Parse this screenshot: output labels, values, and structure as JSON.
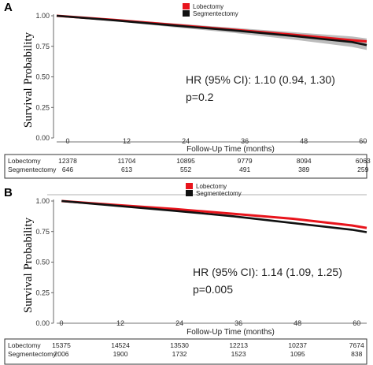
{
  "colors": {
    "lobectomy": "#e8141c",
    "segmentectomy": "#111111",
    "ci_band": "#b5b5b5",
    "axis": "#444444"
  },
  "chart_data": [
    {
      "type": "line",
      "panel_label": "A",
      "title": "",
      "xlabel": "Follow-Up Time (months)",
      "ylabel": "Survival Probability",
      "xlim": [
        0,
        63
      ],
      "ylim": [
        0,
        1.0
      ],
      "x_ticks": [
        0,
        12,
        24,
        36,
        48,
        60
      ],
      "y_ticks": [
        "0.00",
        "0.25",
        "0.50",
        "0.75",
        "1.00"
      ],
      "legend": {
        "placement": "top-center",
        "entries": [
          "Lobectomy",
          "Segmentectomy"
        ]
      },
      "annotation": [
        "HR (95% CI): 1.10 (0.94, 1.30)",
        "p=0.2"
      ],
      "series": [
        {
          "name": "Lobectomy",
          "x": [
            0,
            12,
            24,
            36,
            48,
            60,
            63
          ],
          "y": [
            1.0,
            0.965,
            0.925,
            0.885,
            0.845,
            0.8,
            0.79
          ]
        },
        {
          "name": "Segmentectomy",
          "x": [
            0,
            12,
            24,
            36,
            48,
            60,
            63
          ],
          "y": [
            1.0,
            0.962,
            0.92,
            0.88,
            0.835,
            0.785,
            0.76
          ]
        }
      ],
      "ci_band": {
        "x": [
          0,
          12,
          24,
          36,
          48,
          60,
          63
        ],
        "lower": [
          1.0,
          0.955,
          0.905,
          0.86,
          0.805,
          0.745,
          0.72
        ],
        "upper": [
          1.0,
          0.972,
          0.937,
          0.902,
          0.866,
          0.83,
          0.815
        ]
      },
      "risk_table": {
        "rows": [
          {
            "label": "Lobectomy",
            "values": [
              "12378",
              "11704",
              "10895",
              "9779",
              "8094",
              "6063"
            ]
          },
          {
            "label": "Segmentectomy",
            "values": [
              "646",
              "613",
              "552",
              "491",
              "389",
              "259"
            ]
          }
        ]
      }
    },
    {
      "type": "line",
      "panel_label": "B",
      "title": "",
      "xlabel": "Follow-Up Time (months)",
      "ylabel": "Survival Probability",
      "xlim": [
        0,
        63
      ],
      "ylim": [
        0,
        1.0
      ],
      "x_ticks": [
        0,
        12,
        24,
        36,
        48,
        60
      ],
      "y_ticks": [
        "0.00",
        "0.25",
        "0.50",
        "0.75",
        "1.00"
      ],
      "legend": {
        "placement": "top-center",
        "entries": [
          "Lobectomy",
          "Segmentectomy"
        ]
      },
      "annotation": [
        "HR (95% CI): 1.14 (1.09, 1.25)",
        "p=0.005"
      ],
      "series": [
        {
          "name": "Lobectomy",
          "x": [
            1,
            12,
            24,
            36,
            48,
            60,
            63
          ],
          "y": [
            1.0,
            0.968,
            0.935,
            0.895,
            0.855,
            0.8,
            0.78
          ]
        },
        {
          "name": "Segmentectomy",
          "x": [
            1,
            12,
            24,
            36,
            48,
            60,
            63
          ],
          "y": [
            1.0,
            0.962,
            0.92,
            0.875,
            0.82,
            0.765,
            0.745
          ]
        }
      ],
      "risk_table": {
        "rows": [
          {
            "label": "Lobectomy",
            "values": [
              "15375",
              "14524",
              "13530",
              "12213",
              "10237",
              "7674"
            ]
          },
          {
            "label": "Segmentectomy",
            "values": [
              "2006",
              "1900",
              "1732",
              "1523",
              "1095",
              "838"
            ]
          }
        ]
      }
    }
  ]
}
